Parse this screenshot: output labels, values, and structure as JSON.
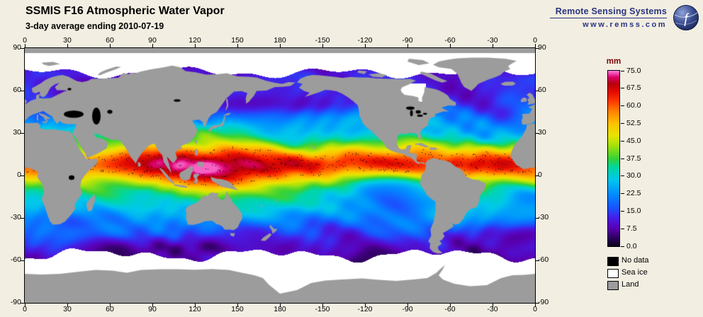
{
  "header": {
    "title": "SSMIS F16 Atmospheric Water Vapor",
    "subtitle": "3-day average ending 2010-07-19"
  },
  "branding": {
    "name": "Remote Sensing Systems",
    "url": "www.remss.com",
    "logo_icon": "globe-icon"
  },
  "map": {
    "lon_ticks": [
      "0",
      "30",
      "60",
      "90",
      "120",
      "150",
      "180",
      "-150",
      "-120",
      "-90",
      "-60",
      "-30",
      "0"
    ],
    "lat_ticks": [
      "90",
      "60",
      "30",
      "0",
      "-30",
      "-60",
      "-90"
    ]
  },
  "colorbar": {
    "unit": "mm",
    "ticks": [
      "75.0",
      "67.5",
      "60.0",
      "52.5",
      "45.0",
      "37.5",
      "30.0",
      "22.5",
      "15.0",
      "7.5",
      "0.0"
    ]
  },
  "legend": [
    {
      "label": "No data",
      "color": "#000000"
    },
    {
      "label": "Sea ice",
      "color": "#ffffff"
    },
    {
      "label": "Land",
      "color": "#9c9c9c"
    }
  ],
  "colors": {
    "background": "#f2eee1",
    "land": "#9c9c9c",
    "border": "#000000",
    "brand": "#2a3480",
    "colorbar_unit_label": "#7a0000"
  },
  "chart_data": {
    "type": "heatmap",
    "title": "SSMIS F16 Atmospheric Water Vapor",
    "subtitle": "3-day average ending 2010-07-19",
    "units": "mm",
    "value_range": [
      0,
      75
    ],
    "colorbar_ticks": [
      0,
      7.5,
      15,
      22.5,
      30,
      37.5,
      45,
      52.5,
      60,
      67.5,
      75
    ],
    "lon_tick_values": [
      0,
      30,
      60,
      90,
      120,
      150,
      180,
      -150,
      -120,
      -90,
      -60,
      -30,
      0
    ],
    "lat_tick_values": [
      90,
      60,
      30,
      0,
      -30,
      -60,
      -90
    ],
    "legend_classes": [
      "No data",
      "Sea ice",
      "Land"
    ]
  }
}
